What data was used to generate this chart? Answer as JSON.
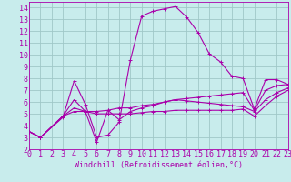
{
  "xlabel": "Windchill (Refroidissement éolien,°C)",
  "bg_color": "#c8ecec",
  "grid_color": "#a0c8c8",
  "line_color": "#aa00aa",
  "xlim": [
    0,
    23
  ],
  "ylim": [
    2,
    14.5
  ],
  "xticks": [
    0,
    1,
    2,
    3,
    4,
    5,
    6,
    7,
    8,
    9,
    10,
    11,
    12,
    13,
    14,
    15,
    16,
    17,
    18,
    19,
    20,
    21,
    22,
    23
  ],
  "yticks": [
    2,
    3,
    4,
    5,
    6,
    7,
    8,
    9,
    10,
    11,
    12,
    13,
    14
  ],
  "line1_x": [
    0,
    1,
    3,
    4,
    5,
    6,
    7,
    8,
    9,
    10,
    11,
    12,
    13,
    14,
    15,
    16,
    17,
    18,
    19,
    20,
    21,
    22,
    23
  ],
  "line1_y": [
    3.5,
    3.0,
    4.7,
    7.8,
    5.8,
    3.0,
    3.2,
    4.3,
    9.6,
    13.3,
    13.7,
    13.9,
    14.1,
    13.2,
    11.9,
    10.1,
    9.4,
    8.2,
    8.0,
    5.4,
    7.9,
    7.9,
    7.5
  ],
  "line2_x": [
    0,
    1,
    3,
    4,
    5,
    6,
    7,
    8,
    9,
    10,
    11,
    12,
    13,
    14,
    15,
    16,
    17,
    18,
    19,
    20,
    21,
    22,
    23
  ],
  "line2_y": [
    3.5,
    3.0,
    4.8,
    6.2,
    5.2,
    2.6,
    5.3,
    4.5,
    5.2,
    5.5,
    5.7,
    6.0,
    6.2,
    6.3,
    6.4,
    6.5,
    6.6,
    6.7,
    6.8,
    5.3,
    7.0,
    7.4,
    7.5
  ],
  "line3_x": [
    0,
    1,
    3,
    4,
    5,
    6,
    7,
    8,
    9,
    10,
    11,
    12,
    13,
    14,
    15,
    16,
    17,
    18,
    19,
    20,
    21,
    22,
    23
  ],
  "line3_y": [
    3.5,
    3.0,
    4.8,
    5.5,
    5.2,
    5.2,
    5.3,
    5.5,
    5.5,
    5.7,
    5.8,
    6.0,
    6.2,
    6.1,
    6.0,
    5.9,
    5.8,
    5.7,
    5.6,
    5.2,
    6.2,
    6.8,
    7.2
  ],
  "line4_x": [
    0,
    1,
    3,
    4,
    5,
    6,
    7,
    8,
    9,
    10,
    11,
    12,
    13,
    14,
    15,
    16,
    17,
    18,
    19,
    20,
    21,
    22,
    23
  ],
  "line4_y": [
    3.5,
    3.0,
    4.8,
    5.2,
    5.2,
    5.0,
    5.0,
    5.0,
    5.0,
    5.1,
    5.2,
    5.2,
    5.3,
    5.3,
    5.3,
    5.3,
    5.3,
    5.3,
    5.4,
    4.8,
    5.7,
    6.5,
    7.0
  ],
  "tick_fontsize": 6,
  "xlabel_fontsize": 6
}
